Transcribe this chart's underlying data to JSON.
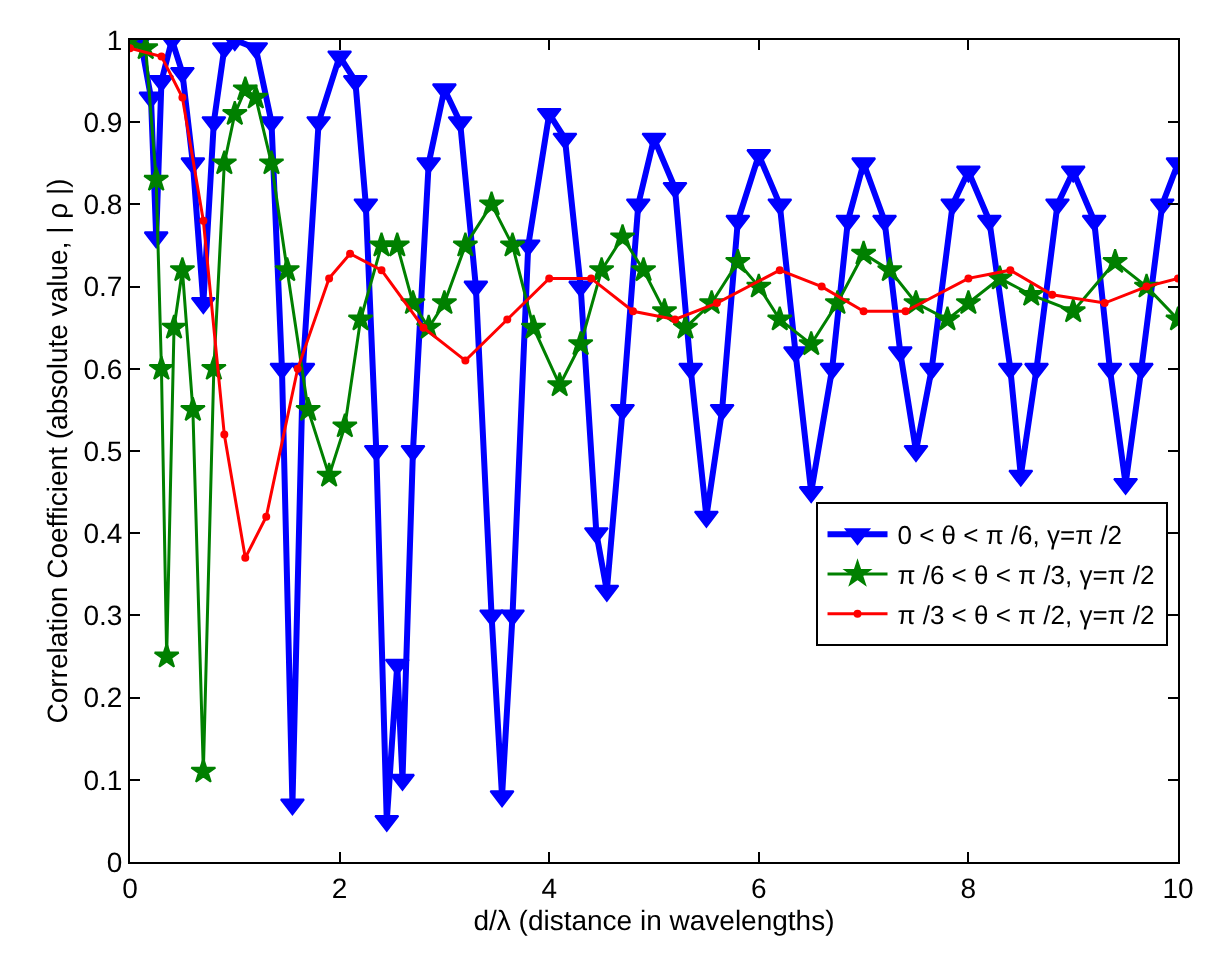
{
  "chart_data": {
    "type": "line",
    "xlabel": "d/λ (distance in wavelengths)",
    "ylabel": "Correlation Coefficient (absolute value, | ρ |)",
    "xlim": [
      0,
      10
    ],
    "ylim": [
      0,
      1
    ],
    "xticks": [
      0,
      2,
      4,
      6,
      8,
      10
    ],
    "yticks": [
      0,
      0.1,
      0.2,
      0.3,
      0.4,
      0.5,
      0.6,
      0.7,
      0.8,
      0.9,
      1
    ],
    "legend": "right",
    "series": [
      {
        "name": "0 < θ < π /6, γ=π /2",
        "color": "#0000ff",
        "marker": "triangle",
        "x": [
          0,
          0.1,
          0.2,
          0.25,
          0.3,
          0.4,
          0.5,
          0.6,
          0.7,
          0.8,
          0.9,
          1.0,
          1.2,
          1.35,
          1.45,
          1.55,
          1.65,
          1.8,
          2.0,
          2.15,
          2.25,
          2.35,
          2.45,
          2.55,
          2.6,
          2.7,
          2.85,
          3.0,
          3.15,
          3.3,
          3.45,
          3.55,
          3.65,
          3.8,
          4.0,
          4.15,
          4.3,
          4.45,
          4.55,
          4.7,
          4.85,
          5.0,
          5.2,
          5.35,
          5.5,
          5.65,
          5.8,
          6.0,
          6.2,
          6.35,
          6.5,
          6.7,
          6.85,
          7.0,
          7.2,
          7.35,
          7.5,
          7.65,
          7.85,
          8.0,
          8.2,
          8.4,
          8.5,
          8.65,
          8.85,
          9.0,
          9.2,
          9.35,
          9.5,
          9.65,
          9.85,
          10
        ],
        "values": [
          1.0,
          1.0,
          0.93,
          0.76,
          0.95,
          1.0,
          0.96,
          0.85,
          0.68,
          0.9,
          0.99,
          1.0,
          0.99,
          0.9,
          0.6,
          0.07,
          0.6,
          0.9,
          0.98,
          0.95,
          0.8,
          0.5,
          0.05,
          0.24,
          0.1,
          0.5,
          0.85,
          0.94,
          0.9,
          0.7,
          0.3,
          0.08,
          0.3,
          0.75,
          0.91,
          0.88,
          0.7,
          0.4,
          0.33,
          0.55,
          0.8,
          0.88,
          0.82,
          0.6,
          0.42,
          0.55,
          0.78,
          0.86,
          0.8,
          0.62,
          0.45,
          0.6,
          0.78,
          0.85,
          0.78,
          0.62,
          0.5,
          0.6,
          0.8,
          0.84,
          0.78,
          0.6,
          0.47,
          0.6,
          0.8,
          0.84,
          0.78,
          0.6,
          0.46,
          0.6,
          0.8,
          0.85
        ]
      },
      {
        "name": "π /6 < θ < π /3, γ=π /2",
        "color": "#008000",
        "marker": "star",
        "x": [
          0,
          0.15,
          0.25,
          0.3,
          0.35,
          0.42,
          0.5,
          0.6,
          0.7,
          0.8,
          0.9,
          1.0,
          1.1,
          1.2,
          1.35,
          1.5,
          1.7,
          1.9,
          2.05,
          2.2,
          2.4,
          2.55,
          2.7,
          2.85,
          3.0,
          3.2,
          3.45,
          3.65,
          3.85,
          4.1,
          4.3,
          4.5,
          4.7,
          4.9,
          5.1,
          5.3,
          5.55,
          5.8,
          6.0,
          6.2,
          6.5,
          6.75,
          7.0,
          7.25,
          7.5,
          7.8,
          8.0,
          8.3,
          8.6,
          9.0,
          9.4,
          9.7,
          10
        ],
        "values": [
          1.0,
          0.99,
          0.83,
          0.6,
          0.25,
          0.65,
          0.72,
          0.55,
          0.11,
          0.6,
          0.85,
          0.91,
          0.94,
          0.93,
          0.85,
          0.72,
          0.55,
          0.47,
          0.53,
          0.66,
          0.75,
          0.75,
          0.68,
          0.65,
          0.68,
          0.75,
          0.8,
          0.75,
          0.65,
          0.58,
          0.63,
          0.72,
          0.76,
          0.72,
          0.67,
          0.65,
          0.68,
          0.73,
          0.7,
          0.66,
          0.63,
          0.68,
          0.74,
          0.72,
          0.68,
          0.66,
          0.68,
          0.71,
          0.69,
          0.67,
          0.73,
          0.7,
          0.66
        ]
      },
      {
        "name": "π /3 < θ < π /2, γ=π /2",
        "color": "#ff0000",
        "marker": "circle",
        "x": [
          0,
          0.3,
          0.5,
          0.7,
          0.9,
          1.1,
          1.3,
          1.6,
          1.9,
          2.1,
          2.4,
          2.8,
          3.2,
          3.6,
          4.0,
          4.4,
          4.8,
          5.2,
          5.6,
          6.2,
          6.6,
          7.0,
          7.4,
          8.0,
          8.4,
          8.8,
          9.3,
          9.7,
          10
        ],
        "values": [
          0.99,
          0.98,
          0.93,
          0.78,
          0.52,
          0.37,
          0.42,
          0.6,
          0.71,
          0.74,
          0.72,
          0.65,
          0.61,
          0.66,
          0.71,
          0.71,
          0.67,
          0.66,
          0.68,
          0.72,
          0.7,
          0.67,
          0.67,
          0.71,
          0.72,
          0.69,
          0.68,
          0.7,
          0.71
        ]
      }
    ]
  }
}
